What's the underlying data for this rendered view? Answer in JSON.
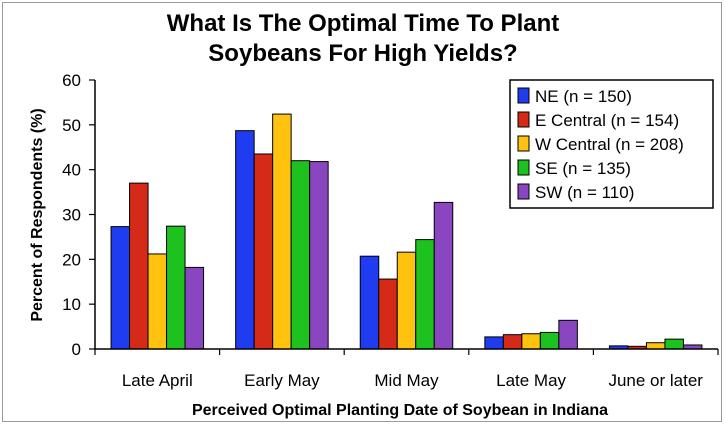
{
  "chart_data": {
    "type": "bar",
    "title_lines": [
      "What Is The Optimal Time To Plant",
      "Soybeans For High Yields?"
    ],
    "xlabel": "Perceived Optimal Planting Date of Soybean in Indiana",
    "ylabel": "Percent of Respondents (%)",
    "ylim": [
      0,
      60
    ],
    "yticks": [
      0,
      10,
      20,
      30,
      40,
      50,
      60
    ],
    "categories": [
      "Late April",
      "Early May",
      "Mid May",
      "Late May",
      "June or later"
    ],
    "series": [
      {
        "name": "NE (n = 150)",
        "color": "#1f3cf0",
        "values": [
          27.3,
          48.7,
          20.7,
          2.7,
          0.7
        ]
      },
      {
        "name": "E Central (n = 154)",
        "color": "#d42a17",
        "values": [
          37.0,
          43.5,
          15.6,
          3.2,
          0.6
        ]
      },
      {
        "name": "W Central (n = 208)",
        "color": "#ffc20e",
        "values": [
          21.2,
          52.4,
          21.6,
          3.4,
          1.4
        ]
      },
      {
        "name": "SE (n = 135)",
        "color": "#1ec21e",
        "values": [
          27.4,
          42.0,
          24.4,
          3.7,
          2.2
        ]
      },
      {
        "name": "SW (n = 110)",
        "color": "#8a46c0",
        "values": [
          18.2,
          41.8,
          32.7,
          6.4,
          0.9
        ]
      }
    ],
    "grid": false,
    "legend_position": "top-right"
  }
}
